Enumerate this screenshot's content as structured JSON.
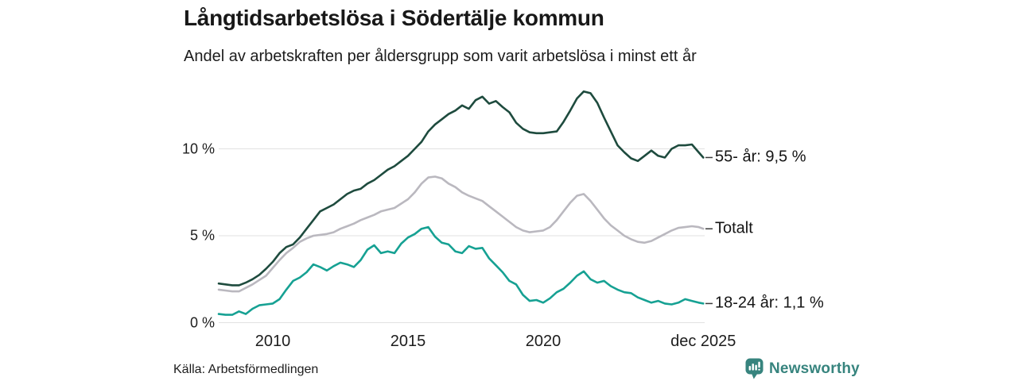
{
  "footer": {
    "source": "Källa: Arbetsförmedlingen",
    "brand": "Newsworthy",
    "brand_color": "#37847e"
  },
  "chart_data": {
    "type": "line",
    "title": "Långtidsarbetslösa i Södertälje kommun",
    "subtitle": "Andel av arbetskraften per åldersgrupp som varit arbetslösa i minst ett år",
    "source": "Källa: Arbetsförmedlingen",
    "x_unit": "decimal_year",
    "x_range": [
      2008,
      2025.92
    ],
    "ylim": [
      0,
      14
    ],
    "grid": "horizontal",
    "grid_color": "#e2e2e2",
    "legend_position": "end-of-line",
    "y_ticks": [
      {
        "value": 0,
        "label": "0 %"
      },
      {
        "value": 5,
        "label": "5 %"
      },
      {
        "value": 10,
        "label": "10 %"
      }
    ],
    "x_ticks": [
      {
        "value": 2010,
        "label": "2010"
      },
      {
        "value": 2015,
        "label": "2015"
      },
      {
        "value": 2020,
        "label": "2020"
      },
      {
        "value": 2025.92,
        "label": "dec 2025"
      }
    ],
    "x": [
      2008,
      2008.25,
      2008.5,
      2008.75,
      2009,
      2009.25,
      2009.5,
      2009.75,
      2010,
      2010.25,
      2010.5,
      2010.75,
      2011,
      2011.25,
      2011.5,
      2011.75,
      2012,
      2012.25,
      2012.5,
      2012.75,
      2013,
      2013.25,
      2013.5,
      2013.75,
      2014,
      2014.25,
      2014.5,
      2014.75,
      2015,
      2015.25,
      2015.5,
      2015.75,
      2016,
      2016.25,
      2016.5,
      2016.75,
      2017,
      2017.25,
      2017.5,
      2017.75,
      2018,
      2018.25,
      2018.5,
      2018.75,
      2019,
      2019.25,
      2019.5,
      2019.75,
      2020,
      2020.25,
      2020.5,
      2020.75,
      2021,
      2021.25,
      2021.5,
      2021.75,
      2022,
      2022.25,
      2022.5,
      2022.75,
      2023,
      2023.25,
      2023.5,
      2023.75,
      2024,
      2024.25,
      2024.5,
      2024.75,
      2025,
      2025.25,
      2025.5,
      2025.75,
      2025.92
    ],
    "series": [
      {
        "name": "55- år",
        "end_label": "55- år: 9,5 %",
        "last_value_label": "9,5 %",
        "color": "#1e4b3e",
        "values": [
          2.25,
          2.2,
          2.15,
          2.15,
          2.3,
          2.5,
          2.75,
          3.1,
          3.5,
          4.0,
          4.35,
          4.5,
          4.9,
          5.4,
          5.9,
          6.4,
          6.6,
          6.8,
          7.1,
          7.4,
          7.6,
          7.7,
          8.0,
          8.2,
          8.5,
          8.8,
          9.0,
          9.3,
          9.6,
          10.0,
          10.4,
          11.0,
          11.4,
          11.7,
          12.0,
          12.2,
          12.5,
          12.3,
          12.8,
          13.0,
          12.6,
          12.75,
          12.4,
          12.1,
          11.5,
          11.15,
          10.95,
          10.9,
          10.9,
          10.95,
          11.0,
          11.55,
          12.2,
          12.9,
          13.3,
          13.2,
          12.65,
          11.8,
          11.0,
          10.2,
          9.8,
          9.45,
          9.3,
          9.6,
          9.9,
          9.6,
          9.5,
          10.0,
          10.2,
          10.2,
          10.25,
          9.8,
          9.5
        ]
      },
      {
        "name": "Totalt",
        "end_label": "Totalt",
        "last_value_label": "",
        "color": "#bab8bf",
        "values": [
          1.9,
          1.85,
          1.8,
          1.8,
          2.0,
          2.2,
          2.45,
          2.7,
          3.15,
          3.6,
          4.0,
          4.3,
          4.65,
          4.85,
          5.0,
          5.05,
          5.1,
          5.2,
          5.4,
          5.55,
          5.7,
          5.9,
          6.05,
          6.2,
          6.4,
          6.5,
          6.6,
          6.85,
          7.1,
          7.5,
          8.0,
          8.35,
          8.4,
          8.3,
          8.0,
          7.8,
          7.5,
          7.3,
          7.15,
          7.0,
          6.7,
          6.4,
          6.1,
          5.8,
          5.5,
          5.3,
          5.2,
          5.25,
          5.3,
          5.5,
          5.9,
          6.4,
          6.9,
          7.3,
          7.4,
          7.0,
          6.5,
          6.0,
          5.6,
          5.3,
          5.0,
          4.8,
          4.65,
          4.6,
          4.7,
          4.9,
          5.1,
          5.3,
          5.45,
          5.5,
          5.55,
          5.5,
          5.4
        ]
      },
      {
        "name": "18-24 år",
        "end_label": "18-24 år: 1,1 %",
        "last_value_label": "1,1 %",
        "color": "#16a193",
        "values": [
          0.5,
          0.45,
          0.45,
          0.65,
          0.5,
          0.8,
          1.0,
          1.05,
          1.1,
          1.35,
          1.9,
          2.4,
          2.6,
          2.9,
          3.35,
          3.2,
          3.0,
          3.25,
          3.45,
          3.35,
          3.2,
          3.6,
          4.2,
          4.45,
          4.0,
          4.1,
          4.0,
          4.55,
          4.9,
          5.1,
          5.4,
          5.5,
          4.95,
          4.6,
          4.5,
          4.1,
          4.0,
          4.4,
          4.25,
          4.3,
          3.7,
          3.3,
          2.9,
          2.4,
          2.2,
          1.6,
          1.25,
          1.3,
          1.15,
          1.4,
          1.75,
          1.95,
          2.3,
          2.7,
          2.95,
          2.5,
          2.3,
          2.4,
          2.1,
          1.9,
          1.75,
          1.7,
          1.45,
          1.3,
          1.15,
          1.25,
          1.1,
          1.05,
          1.15,
          1.35,
          1.25,
          1.15,
          1.1
        ]
      }
    ]
  }
}
